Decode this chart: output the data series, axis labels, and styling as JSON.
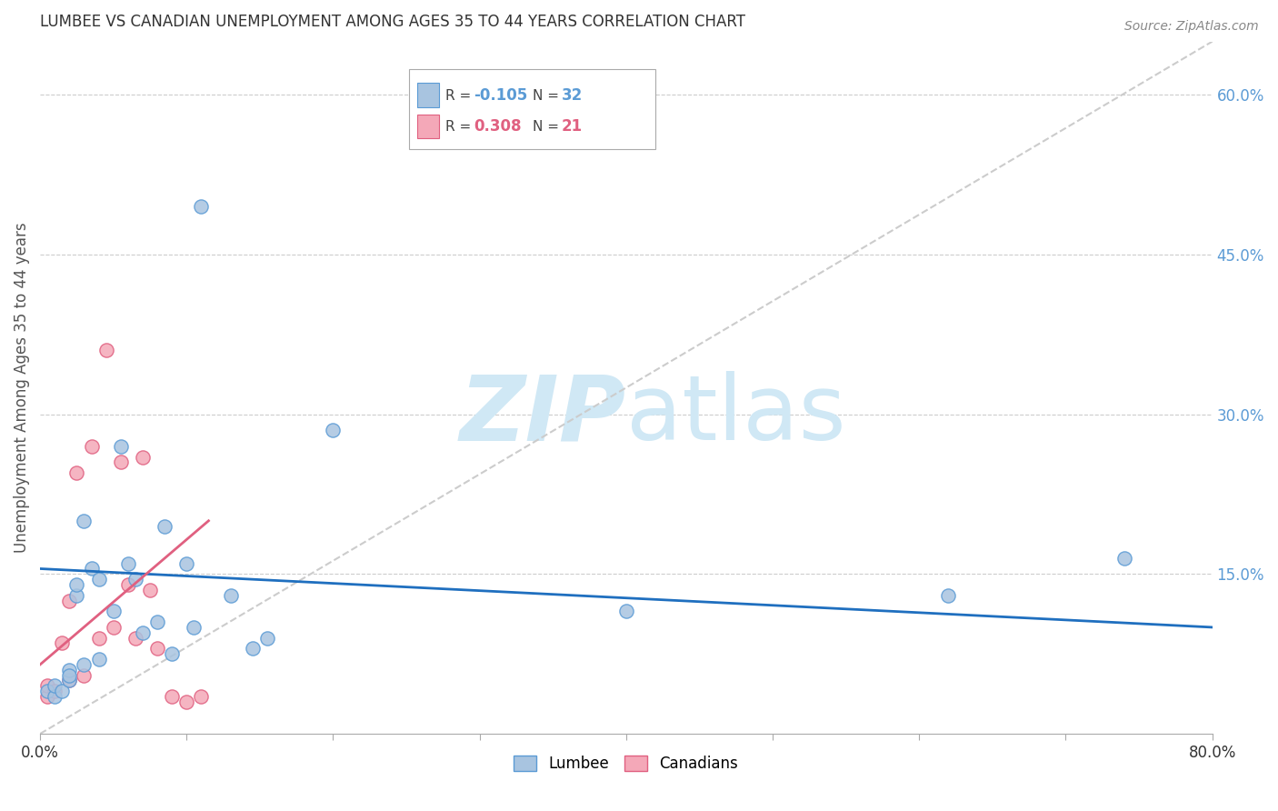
{
  "title": "LUMBEE VS CANADIAN UNEMPLOYMENT AMONG AGES 35 TO 44 YEARS CORRELATION CHART",
  "source": "Source: ZipAtlas.com",
  "ylabel": "Unemployment Among Ages 35 to 44 years",
  "xlim": [
    0.0,
    0.8
  ],
  "ylim": [
    0.0,
    0.65
  ],
  "xticks": [
    0.0,
    0.1,
    0.2,
    0.3,
    0.4,
    0.5,
    0.6,
    0.7,
    0.8
  ],
  "xticklabels": [
    "0.0%",
    "",
    "",
    "",
    "",
    "",
    "",
    "",
    "80.0%"
  ],
  "yticks_right": [
    0.15,
    0.3,
    0.45,
    0.6
  ],
  "ytick_right_labels": [
    "15.0%",
    "30.0%",
    "45.0%",
    "60.0%"
  ],
  "lumbee_color": "#a8c4e0",
  "canadian_color": "#f4a8b8",
  "lumbee_edge_color": "#5b9bd5",
  "canadian_edge_color": "#e06080",
  "lumbee_scatter_x": [
    0.005,
    0.01,
    0.01,
    0.015,
    0.02,
    0.02,
    0.02,
    0.025,
    0.025,
    0.03,
    0.03,
    0.035,
    0.04,
    0.04,
    0.05,
    0.055,
    0.06,
    0.065,
    0.07,
    0.08,
    0.085,
    0.09,
    0.1,
    0.105,
    0.11,
    0.13,
    0.145,
    0.155,
    0.2,
    0.4,
    0.62,
    0.74
  ],
  "lumbee_scatter_y": [
    0.04,
    0.035,
    0.045,
    0.04,
    0.05,
    0.06,
    0.055,
    0.13,
    0.14,
    0.065,
    0.2,
    0.155,
    0.07,
    0.145,
    0.115,
    0.27,
    0.16,
    0.145,
    0.095,
    0.105,
    0.195,
    0.075,
    0.16,
    0.1,
    0.495,
    0.13,
    0.08,
    0.09,
    0.285,
    0.115,
    0.13,
    0.165
  ],
  "canadian_scatter_x": [
    0.005,
    0.005,
    0.01,
    0.015,
    0.02,
    0.02,
    0.025,
    0.03,
    0.035,
    0.04,
    0.045,
    0.05,
    0.055,
    0.06,
    0.065,
    0.07,
    0.075,
    0.08,
    0.09,
    0.1,
    0.11
  ],
  "canadian_scatter_y": [
    0.035,
    0.045,
    0.04,
    0.085,
    0.05,
    0.125,
    0.245,
    0.055,
    0.27,
    0.09,
    0.36,
    0.1,
    0.255,
    0.14,
    0.09,
    0.26,
    0.135,
    0.08,
    0.035,
    0.03,
    0.035
  ],
  "grid_color": "#cccccc",
  "bg_color": "#ffffff",
  "title_color": "#333333",
  "axis_label_color": "#555555",
  "right_tick_color": "#5b9bd5",
  "watermark_color": "#d0e8f5",
  "lumbee_line_color": "#1f6fbf",
  "canadian_line_color": "#e06080",
  "diagonal_color": "#cccccc",
  "lumbee_line_x": [
    0.0,
    0.8
  ],
  "lumbee_line_y": [
    0.155,
    0.1
  ],
  "canadian_line_x": [
    0.0,
    0.115
  ],
  "canadian_line_y": [
    0.065,
    0.2
  ]
}
